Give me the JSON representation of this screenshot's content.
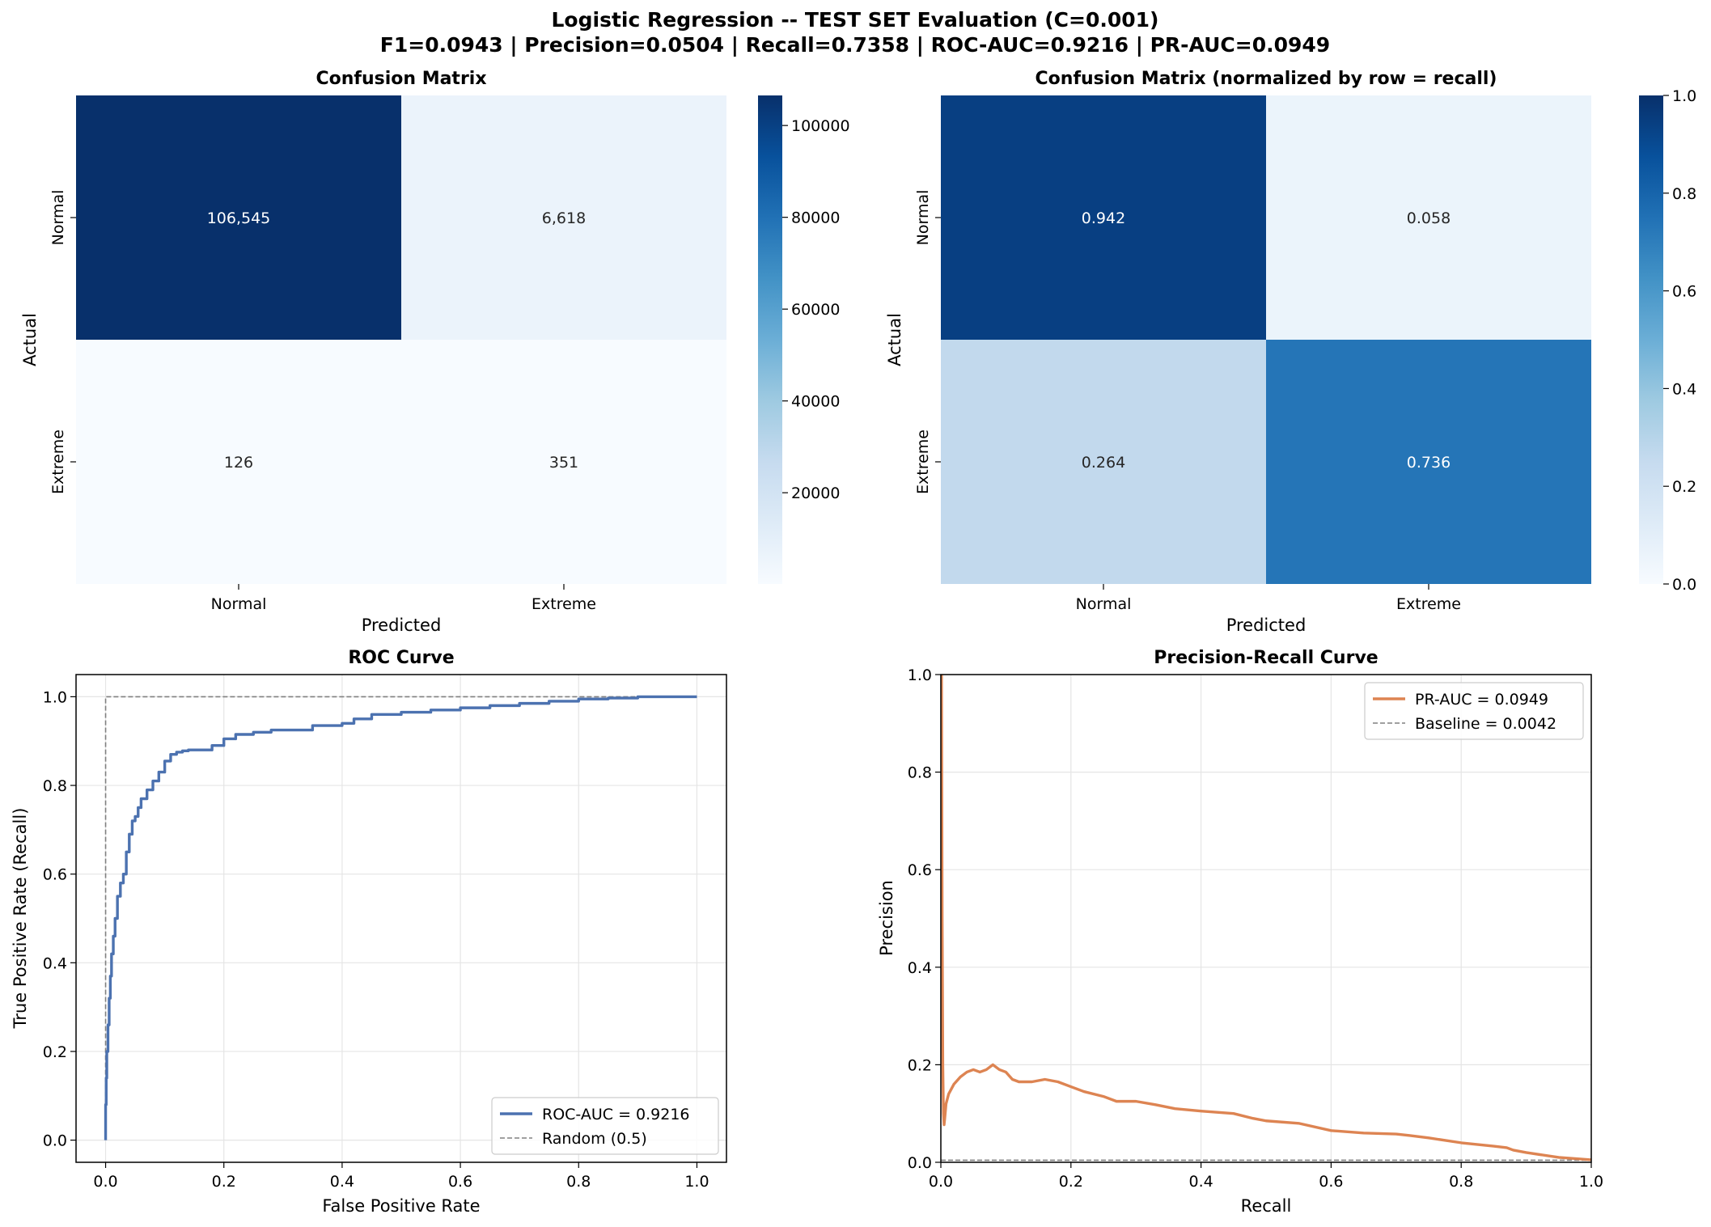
{
  "suptitle": {
    "line1": "Logistic Regression -- TEST SET Evaluation (C=0.001)",
    "line2": "F1=0.0943 | Precision=0.0504 | Recall=0.7358 | ROC-AUC=0.9216 | PR-AUC=0.0949"
  },
  "colors": {
    "roc_line": "#4c72b0",
    "pr_line": "#dd8452",
    "reference_line": "#808080",
    "cmap": [
      "#f7fbff",
      "#deebf7",
      "#c6dbef",
      "#9ecae1",
      "#6baed6",
      "#4292c6",
      "#2171b5",
      "#08519c",
      "#08306b"
    ]
  },
  "chart_data": [
    {
      "type": "heatmap",
      "id": "cm",
      "title": "Confusion Matrix",
      "xlabel": "Predicted",
      "ylabel": "Actual",
      "row_labels": [
        "Normal",
        "Extreme"
      ],
      "col_labels": [
        "Normal",
        "Extreme"
      ],
      "values": [
        [
          106545,
          6618
        ],
        [
          126,
          351
        ]
      ],
      "annotations": [
        [
          "106,545",
          "6,618"
        ],
        [
          "126",
          "351"
        ]
      ],
      "colorbar": {
        "min": 126,
        "max": 106545,
        "ticks": [
          20000,
          40000,
          60000,
          80000,
          100000
        ],
        "tick_labels": [
          "20000",
          "40000",
          "60000",
          "80000",
          "100000"
        ]
      }
    },
    {
      "type": "heatmap",
      "id": "cmn",
      "title": "Confusion Matrix (normalized by row = recall)",
      "xlabel": "Predicted",
      "ylabel": "Actual",
      "row_labels": [
        "Normal",
        "Extreme"
      ],
      "col_labels": [
        "Normal",
        "Extreme"
      ],
      "values": [
        [
          0.942,
          0.058
        ],
        [
          0.264,
          0.736
        ]
      ],
      "annotations": [
        [
          "0.942",
          "0.058"
        ],
        [
          "0.264",
          "0.736"
        ]
      ],
      "colorbar": {
        "min": 0,
        "max": 1,
        "ticks": [
          0,
          0.2,
          0.4,
          0.6,
          0.8,
          1.0
        ],
        "tick_labels": [
          "0.0",
          "0.2",
          "0.4",
          "0.6",
          "0.8",
          "1.0"
        ]
      }
    },
    {
      "type": "line",
      "id": "roc",
      "title": "ROC Curve",
      "xlabel": "False Positive Rate",
      "ylabel": "True Positive Rate (Recall)",
      "xlim": [
        -0.05,
        1.05
      ],
      "ylim": [
        -0.05,
        1.05
      ],
      "xticks": [
        0,
        0.2,
        0.4,
        0.6,
        0.8,
        1.0
      ],
      "xtick_labels": [
        "0.0",
        "0.2",
        "0.4",
        "0.6",
        "0.8",
        "1.0"
      ],
      "yticks": [
        0,
        0.2,
        0.4,
        0.6,
        0.8,
        1.0
      ],
      "ytick_labels": [
        "0.0",
        "0.2",
        "0.4",
        "0.6",
        "0.8",
        "1.0"
      ],
      "grid": true,
      "legend_position": "lower-right",
      "series": [
        {
          "name": "ROC-AUC = 0.9216",
          "style": "solid",
          "x": [
            0,
            0.001,
            0.002,
            0.004,
            0.006,
            0.008,
            0.01,
            0.013,
            0.016,
            0.02,
            0.025,
            0.03,
            0.035,
            0.04,
            0.045,
            0.05,
            0.055,
            0.06,
            0.07,
            0.08,
            0.09,
            0.1,
            0.11,
            0.12,
            0.13,
            0.14,
            0.16,
            0.18,
            0.2,
            0.22,
            0.25,
            0.28,
            0.3,
            0.35,
            0.4,
            0.42,
            0.45,
            0.5,
            0.55,
            0.6,
            0.65,
            0.7,
            0.75,
            0.8,
            0.85,
            0.9,
            0.95,
            1.0
          ],
          "y": [
            0,
            0.08,
            0.14,
            0.2,
            0.26,
            0.32,
            0.37,
            0.42,
            0.46,
            0.5,
            0.55,
            0.58,
            0.6,
            0.65,
            0.69,
            0.72,
            0.73,
            0.75,
            0.77,
            0.79,
            0.81,
            0.83,
            0.855,
            0.87,
            0.875,
            0.878,
            0.88,
            0.88,
            0.89,
            0.905,
            0.915,
            0.92,
            0.925,
            0.925,
            0.935,
            0.94,
            0.95,
            0.96,
            0.965,
            0.97,
            0.975,
            0.98,
            0.985,
            0.99,
            0.995,
            0.997,
            1.0,
            1.0
          ]
        },
        {
          "name": "Random (0.5)",
          "style": "dashed",
          "x": [
            0,
            1
          ],
          "y": [
            0,
            1
          ]
        }
      ]
    },
    {
      "type": "line",
      "id": "pr",
      "title": "Precision-Recall Curve",
      "xlabel": "Recall",
      "ylabel": "Precision",
      "xlim": [
        0,
        1
      ],
      "ylim": [
        0,
        1
      ],
      "xticks": [
        0,
        0.2,
        0.4,
        0.6,
        0.8,
        1.0
      ],
      "xtick_labels": [
        "0.0",
        "0.2",
        "0.4",
        "0.6",
        "0.8",
        "1.0"
      ],
      "yticks": [
        0,
        0.2,
        0.4,
        0.6,
        0.8,
        1.0
      ],
      "ytick_labels": [
        "0.0",
        "0.2",
        "0.4",
        "0.6",
        "0.8",
        "1.0"
      ],
      "grid": true,
      "legend_position": "upper-right",
      "series": [
        {
          "name": "PR-AUC = 0.0949",
          "style": "solid",
          "x": [
            0.001,
            0.002,
            0.003,
            0.004,
            0.005,
            0.006,
            0.008,
            0.012,
            0.02,
            0.03,
            0.04,
            0.05,
            0.06,
            0.07,
            0.08,
            0.09,
            0.1,
            0.11,
            0.12,
            0.14,
            0.16,
            0.18,
            0.2,
            0.22,
            0.25,
            0.27,
            0.3,
            0.33,
            0.36,
            0.4,
            0.45,
            0.48,
            0.5,
            0.55,
            0.6,
            0.65,
            0.7,
            0.72,
            0.75,
            0.8,
            0.85,
            0.87,
            0.88,
            0.9,
            0.95,
            1.0
          ],
          "y": [
            1.0,
            0.5,
            0.2,
            0.1,
            0.077,
            0.09,
            0.12,
            0.14,
            0.16,
            0.175,
            0.185,
            0.19,
            0.185,
            0.19,
            0.2,
            0.19,
            0.185,
            0.17,
            0.165,
            0.165,
            0.17,
            0.165,
            0.155,
            0.145,
            0.135,
            0.125,
            0.125,
            0.118,
            0.11,
            0.105,
            0.1,
            0.09,
            0.085,
            0.08,
            0.065,
            0.06,
            0.058,
            0.055,
            0.05,
            0.04,
            0.033,
            0.03,
            0.025,
            0.02,
            0.01,
            0.005
          ]
        },
        {
          "name": "Baseline = 0.0042",
          "style": "dashed",
          "x": [
            0,
            1
          ],
          "y": [
            0.0042,
            0.0042
          ]
        }
      ]
    }
  ]
}
